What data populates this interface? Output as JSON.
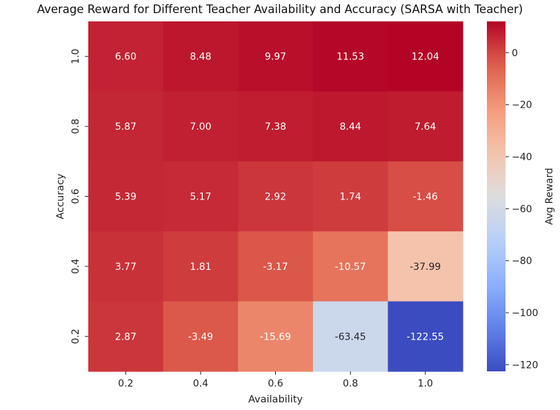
{
  "chart_data": {
    "type": "heatmap",
    "title": "Average Reward for Different Teacher Availability and Accuracy (SARSA with Teacher)",
    "xlabel": "Availability",
    "ylabel": "Accuracy",
    "x_categories": [
      "0.2",
      "0.4",
      "0.6",
      "0.8",
      "1.0"
    ],
    "y_categories": [
      "1.0",
      "0.8",
      "0.6",
      "0.4",
      "0.2"
    ],
    "values": [
      [
        6.6,
        8.48,
        9.97,
        11.53,
        12.04
      ],
      [
        5.87,
        7.0,
        7.38,
        8.44,
        7.64
      ],
      [
        5.39,
        5.17,
        2.92,
        1.74,
        -1.46
      ],
      [
        3.77,
        1.81,
        -3.17,
        -10.57,
        -37.99
      ],
      [
        2.87,
        -3.49,
        -15.69,
        -63.45,
        -122.55
      ]
    ],
    "value_labels": [
      [
        "6.60",
        "8.48",
        "9.97",
        "11.53",
        "12.04"
      ],
      [
        "5.87",
        "7.00",
        "7.38",
        "8.44",
        "7.64"
      ],
      [
        "5.39",
        "5.17",
        "2.92",
        "1.74",
        "-1.46"
      ],
      [
        "3.77",
        "1.81",
        "-3.17",
        "-10.57",
        "-37.99"
      ],
      [
        "2.87",
        "-3.49",
        "-15.69",
        "-63.45",
        "-122.55"
      ]
    ],
    "colormap": "coolwarm",
    "colorbar": {
      "label": "Avg Reward",
      "range": [
        -122.55,
        12.04
      ],
      "ticks": [
        0,
        -20,
        -40,
        -60,
        -80,
        -100,
        -120
      ],
      "tick_labels": [
        "0",
        "−20",
        "−40",
        "−60",
        "−80",
        "−100",
        "−120"
      ]
    },
    "grid": false
  }
}
